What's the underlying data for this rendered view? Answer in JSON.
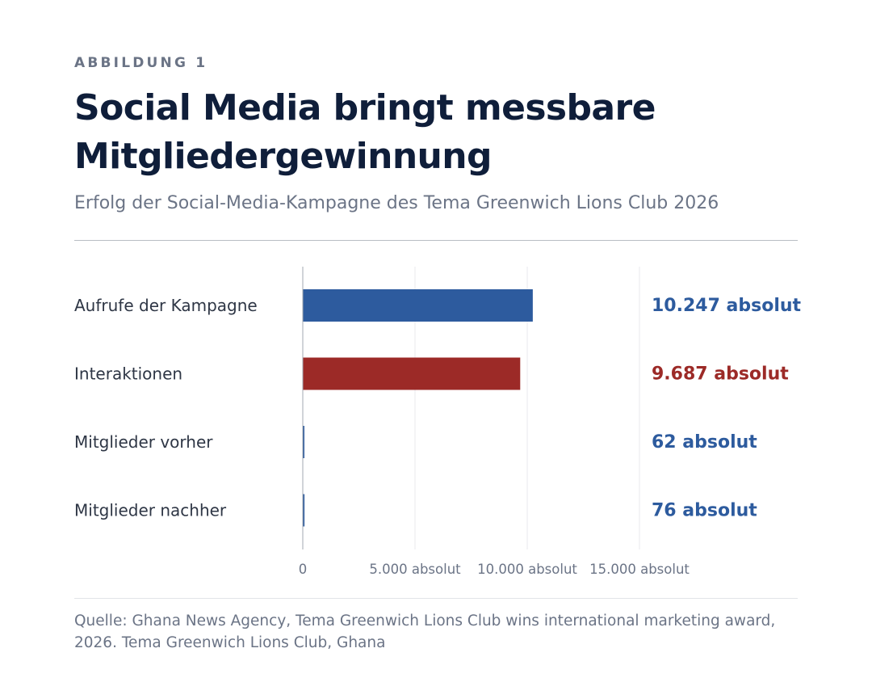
{
  "kicker": "ABBILDUNG 1",
  "title": "Social Media bringt messbare Mitgliedergewinnung",
  "subtitle": "Erfolg der Social-Media-Kampagne des Tema Greenwich Lions Club 2026",
  "source": "Quelle: Ghana News Agency, Tema Greenwich Lions Club wins international marketing award, 2026. Tema Greenwich Lions Club, Ghana",
  "colors": {
    "blue": "#2d5b9e",
    "red": "#9c2a27",
    "grid": "#e8eaee",
    "axis": "#a3a8b0"
  },
  "chart_data": {
    "type": "bar",
    "orientation": "horizontal",
    "categories": [
      "Aufrufe der Kampagne",
      "Interaktionen",
      "Mitglieder vorher",
      "Mitglieder nachher"
    ],
    "values": [
      10247,
      9687,
      62,
      76
    ],
    "value_labels": [
      "10.247 absolut",
      "9.687 absolut",
      "62 absolut",
      "76 absolut"
    ],
    "bar_colors": [
      "#2d5b9e",
      "#9c2a27",
      "#2d5b9e",
      "#2d5b9e"
    ],
    "xlim": [
      0,
      15000
    ],
    "x_ticks": [
      0,
      5000,
      10000,
      15000
    ],
    "x_tick_labels": [
      "0",
      "5.000 absolut",
      "10.000 absolut",
      "15.000 absolut"
    ],
    "grid": true,
    "legend": "none"
  }
}
